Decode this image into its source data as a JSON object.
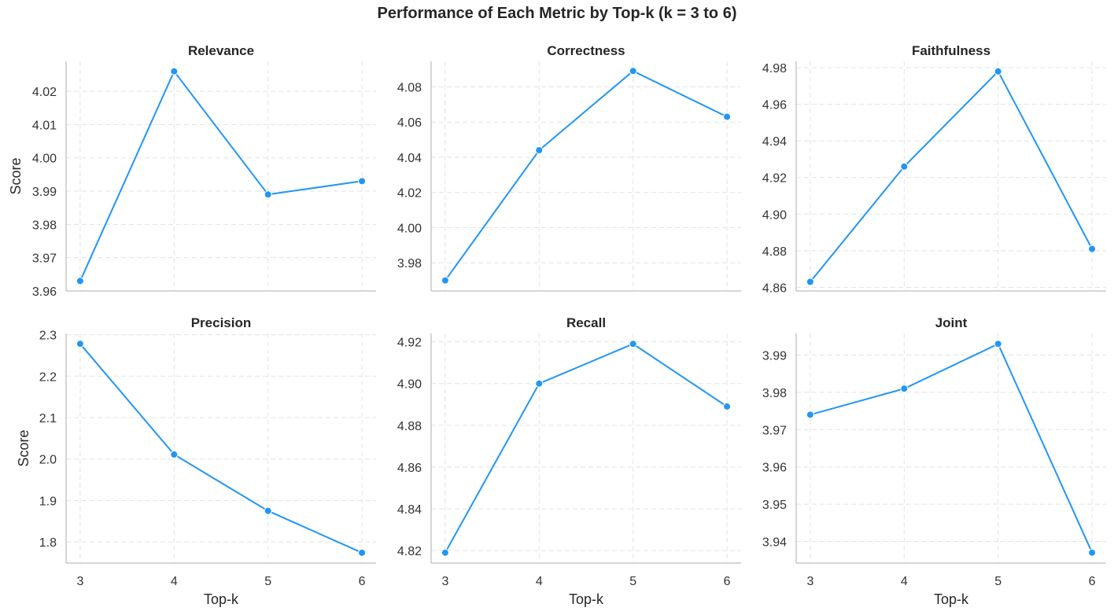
{
  "figure_title": "Performance of Each Metric by Top-k (k = 3 to 6)",
  "colors": {
    "line": "#2196F3",
    "grid": "#e3e3e3",
    "axis": "#c8c8c8",
    "text": "#262626"
  },
  "chart_data": [
    {
      "type": "line",
      "title": "Relevance",
      "x": [
        3,
        4,
        5,
        6
      ],
      "values": [
        3.963,
        4.026,
        3.989,
        3.993
      ],
      "xlabel": "",
      "ylabel": "Score",
      "ylim": [
        3.96,
        4.029
      ],
      "xlim": [
        2.85,
        6.15
      ],
      "yticks": [
        3.96,
        3.97,
        3.98,
        3.99,
        4.0,
        4.01,
        4.02
      ],
      "ytick_labels": [
        "3.96",
        "3.97",
        "3.98",
        "3.99",
        "4.00",
        "4.01",
        "4.02"
      ],
      "xticks": [
        3,
        4,
        5,
        6
      ],
      "xtick_labels": [],
      "grid": true
    },
    {
      "type": "line",
      "title": "Correctness",
      "x": [
        3,
        4,
        5,
        6
      ],
      "values": [
        3.97,
        4.044,
        4.089,
        4.063
      ],
      "xlabel": "",
      "ylabel": "",
      "ylim": [
        3.964,
        4.0945
      ],
      "xlim": [
        2.85,
        6.15
      ],
      "yticks": [
        3.98,
        4.0,
        4.02,
        4.04,
        4.06,
        4.08
      ],
      "ytick_labels": [
        "3.98",
        "4.00",
        "4.02",
        "4.04",
        "4.06",
        "4.08"
      ],
      "xticks": [
        3,
        4,
        5,
        6
      ],
      "xtick_labels": [],
      "grid": true
    },
    {
      "type": "line",
      "title": "Faithfulness",
      "x": [
        3,
        4,
        5,
        6
      ],
      "values": [
        4.863,
        4.926,
        4.978,
        4.881
      ],
      "xlabel": "",
      "ylabel": "",
      "ylim": [
        4.858,
        4.9835
      ],
      "xlim": [
        2.85,
        6.15
      ],
      "yticks": [
        4.86,
        4.88,
        4.9,
        4.92,
        4.94,
        4.96,
        4.98
      ],
      "ytick_labels": [
        "4.86",
        "4.88",
        "4.90",
        "4.92",
        "4.94",
        "4.96",
        "4.98"
      ],
      "xticks": [
        3,
        4,
        5,
        6
      ],
      "xtick_labels": [],
      "grid": true
    },
    {
      "type": "line",
      "title": "Precision",
      "x": [
        3,
        4,
        5,
        6
      ],
      "values": [
        2.278,
        2.011,
        1.875,
        1.774
      ],
      "xlabel": "Top-k",
      "ylabel": "Score",
      "ylim": [
        1.749,
        2.303
      ],
      "xlim": [
        2.85,
        6.15
      ],
      "yticks": [
        1.8,
        1.9,
        2.0,
        2.1,
        2.2,
        2.3
      ],
      "ytick_labels": [
        "1.8",
        "1.9",
        "2.0",
        "2.1",
        "2.2",
        "2.3"
      ],
      "xticks": [
        3,
        4,
        5,
        6
      ],
      "xtick_labels": [
        "3",
        "4",
        "5",
        "6"
      ],
      "grid": true
    },
    {
      "type": "line",
      "title": "Recall",
      "x": [
        3,
        4,
        5,
        6
      ],
      "values": [
        4.819,
        4.9,
        4.919,
        4.889
      ],
      "xlabel": "Top-k",
      "ylabel": "",
      "ylim": [
        4.814,
        4.924
      ],
      "xlim": [
        2.85,
        6.15
      ],
      "yticks": [
        4.82,
        4.84,
        4.86,
        4.88,
        4.9,
        4.92
      ],
      "ytick_labels": [
        "4.82",
        "4.84",
        "4.86",
        "4.88",
        "4.90",
        "4.92"
      ],
      "xticks": [
        3,
        4,
        5,
        6
      ],
      "xtick_labels": [
        "3",
        "4",
        "5",
        "6"
      ],
      "grid": true
    },
    {
      "type": "line",
      "title": "Joint",
      "x": [
        3,
        4,
        5,
        6
      ],
      "values": [
        3.974,
        3.981,
        3.993,
        3.937
      ],
      "xlabel": "Top-k",
      "ylabel": "",
      "ylim": [
        3.9342,
        3.9958
      ],
      "xlim": [
        2.85,
        6.15
      ],
      "yticks": [
        3.94,
        3.95,
        3.96,
        3.97,
        3.98,
        3.99
      ],
      "ytick_labels": [
        "3.94",
        "3.95",
        "3.96",
        "3.97",
        "3.98",
        "3.99"
      ],
      "xticks": [
        3,
        4,
        5,
        6
      ],
      "xtick_labels": [
        "3",
        "4",
        "5",
        "6"
      ],
      "grid": true
    }
  ]
}
